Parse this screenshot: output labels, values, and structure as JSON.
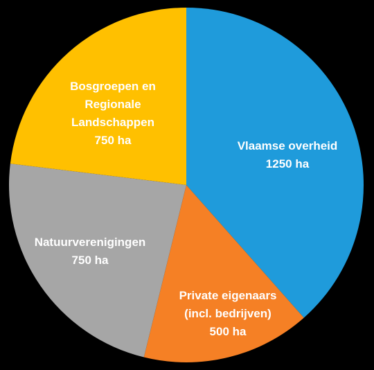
{
  "chart_data": {
    "type": "pie",
    "title": "",
    "categories": [
      "Vlaamse overheid",
      "Private eigenaars (incl. bedrijven)",
      "Natuurverenigingen",
      "Bosgroepen en Regionale Landschappen"
    ],
    "values": [
      1250,
      500,
      750,
      750
    ],
    "unit": "ha",
    "colors": [
      "#1F9BDB",
      "#F58025",
      "#A6A6A6",
      "#FFC000"
    ],
    "start_angle_deg": 0,
    "direction": "clockwise",
    "labels": [
      {
        "lines": [
          "Vlaamse overheid",
          "1250 ha"
        ]
      },
      {
        "lines": [
          "Private eigenaars",
          "(incl. bedrijven)",
          "500 ha"
        ]
      },
      {
        "lines": [
          "Natuurverenigingen",
          "750 ha"
        ]
      },
      {
        "lines": [
          "Bosgroepen en",
          "Regionale",
          "Landschappen",
          "750 ha"
        ]
      }
    ]
  }
}
